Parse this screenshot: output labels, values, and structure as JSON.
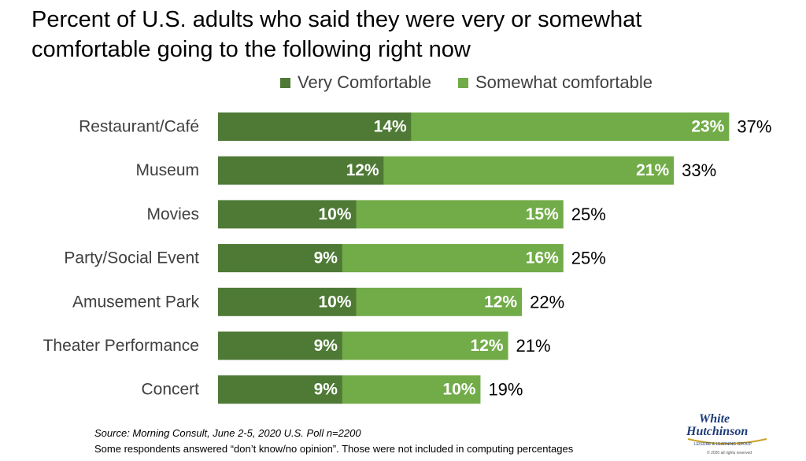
{
  "title_lines": [
    "Percent of U.S. adults who said they were very or somewhat",
    "comfortable going to the following right now"
  ],
  "colors": {
    "very": "#4e7a35",
    "somewhat": "#71ac48"
  },
  "chart_data": {
    "type": "bar",
    "orientation": "horizontal",
    "stacked": true,
    "categories": [
      "Restaurant/Café",
      "Museum",
      "Movies",
      "Party/Social Event",
      "Amusement Park",
      "Theater Performance",
      "Concert"
    ],
    "series": [
      {
        "name": "Very Comfortable",
        "values": [
          14,
          12,
          10,
          9,
          10,
          9,
          9
        ],
        "labels": [
          "14%",
          "12%",
          "10%",
          "9%",
          "10%",
          "9%",
          "9%"
        ]
      },
      {
        "name": "Somewhat comfortable",
        "values": [
          23,
          21,
          15,
          16,
          12,
          12,
          10
        ],
        "labels": [
          "23%",
          "21%",
          "15%",
          "16%",
          "12%",
          "12%",
          "10%"
        ]
      }
    ],
    "totals": [
      37,
      33,
      25,
      25,
      22,
      21,
      19
    ],
    "total_labels": [
      "37%",
      "33%",
      "25%",
      "25%",
      "22%",
      "21%",
      "19%"
    ],
    "grid": false,
    "legend_position": "top"
  },
  "source_text": "Source: Morning Consult, June 2-5, 2020 U.S.  Poll n=2200",
  "note_text": "Some respondents answered “don’t know/no opinion”. Those were not included in computing percentages",
  "logo": {
    "line1": "White",
    "line2": "Hutchinson",
    "tagline": "LEISURE & LEARNING GROUP",
    "copyright": "© 2020 all rights reserved"
  }
}
